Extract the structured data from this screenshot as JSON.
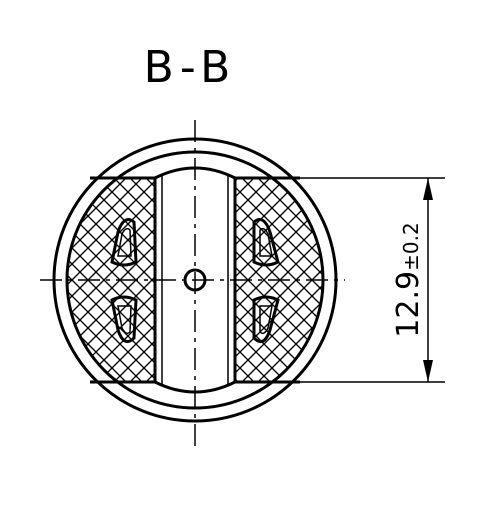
{
  "section_label": "B-B",
  "dimension": {
    "value": "12.9",
    "tolerance": "±0.2"
  }
}
